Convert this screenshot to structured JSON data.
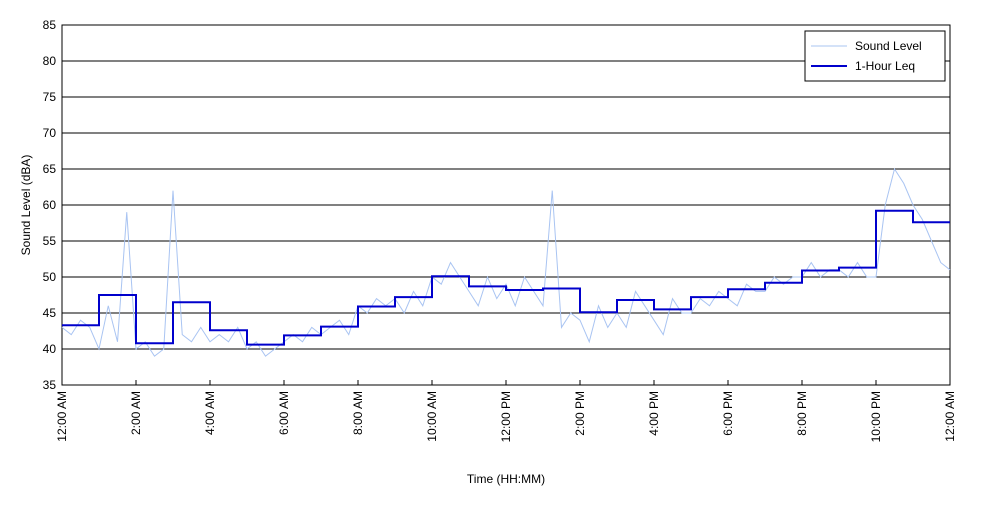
{
  "chart_data": {
    "type": "line",
    "xlabel": "Time (HH:MM)",
    "ylabel": "Sound Level (dBA)",
    "xlim": [
      0,
      24
    ],
    "ylim": [
      35,
      85
    ],
    "xticks": [
      {
        "value": 0,
        "label": "12:00 AM"
      },
      {
        "value": 2,
        "label": "2:00 AM"
      },
      {
        "value": 4,
        "label": "4:00 AM"
      },
      {
        "value": 6,
        "label": "6:00 AM"
      },
      {
        "value": 8,
        "label": "8:00 AM"
      },
      {
        "value": 10,
        "label": "10:00 AM"
      },
      {
        "value": 12,
        "label": "12:00 PM"
      },
      {
        "value": 14,
        "label": "2:00 PM"
      },
      {
        "value": 16,
        "label": "4:00 PM"
      },
      {
        "value": 18,
        "label": "6:00 PM"
      },
      {
        "value": 20,
        "label": "8:00 PM"
      },
      {
        "value": 22,
        "label": "10:00 PM"
      },
      {
        "value": 24,
        "label": "12:00 AM"
      }
    ],
    "yticks": [
      35,
      40,
      45,
      50,
      55,
      60,
      65,
      70,
      75,
      80,
      85
    ],
    "grid": true,
    "legend": "upper right",
    "series": [
      {
        "name": "Sound Level",
        "color": "#a9c4f2",
        "step": false,
        "x": [
          0,
          0.25,
          0.5,
          0.75,
          1,
          1.25,
          1.5,
          1.75,
          2,
          2.25,
          2.5,
          2.75,
          3,
          3.25,
          3.5,
          3.75,
          4,
          4.25,
          4.5,
          4.75,
          5,
          5.25,
          5.5,
          5.75,
          6,
          6.25,
          6.5,
          6.75,
          7,
          7.25,
          7.5,
          7.75,
          8,
          8.25,
          8.5,
          8.75,
          9,
          9.25,
          9.5,
          9.75,
          10,
          10.25,
          10.5,
          10.75,
          11,
          11.25,
          11.5,
          11.75,
          12,
          12.25,
          12.5,
          12.75,
          13,
          13.25,
          13.5,
          13.75,
          14,
          14.25,
          14.5,
          14.75,
          15,
          15.25,
          15.5,
          15.75,
          16,
          16.25,
          16.5,
          16.75,
          17,
          17.25,
          17.5,
          17.75,
          18,
          18.25,
          18.5,
          18.75,
          19,
          19.25,
          19.5,
          19.75,
          20,
          20.25,
          20.5,
          20.75,
          21,
          21.25,
          21.5,
          21.75,
          22,
          22.25,
          22.5,
          22.75,
          23,
          23.25,
          23.5,
          23.75,
          24
        ],
        "values": [
          43,
          42,
          44,
          43,
          40,
          46,
          41,
          59,
          40,
          41,
          39,
          40,
          62,
          42,
          41,
          43,
          41,
          42,
          41,
          43,
          40,
          41,
          39,
          40,
          41,
          42,
          41,
          43,
          42,
          43,
          44,
          42,
          46,
          45,
          47,
          46,
          47,
          45,
          48,
          46,
          50,
          49,
          52,
          50,
          48,
          46,
          50,
          47,
          49,
          46,
          50,
          48,
          46,
          62,
          43,
          45,
          44,
          41,
          46,
          43,
          45,
          43,
          48,
          46,
          44,
          42,
          47,
          45,
          45,
          47,
          46,
          48,
          47,
          46,
          49,
          48,
          48,
          50,
          49,
          50,
          50,
          52,
          50,
          51,
          51,
          50,
          52,
          50,
          50,
          60,
          65,
          63,
          60,
          58,
          55,
          52,
          51
        ]
      },
      {
        "name": "1-Hour Leq",
        "color": "#0000cc",
        "step": true,
        "x": [
          0,
          1,
          2,
          3,
          4,
          5,
          6,
          7,
          8,
          9,
          10,
          11,
          12,
          13,
          14,
          15,
          16,
          17,
          18,
          19,
          20,
          21,
          22,
          23
        ],
        "values": [
          43.3,
          47.5,
          40.8,
          46.5,
          42.6,
          40.6,
          41.9,
          43.1,
          45.9,
          47.2,
          50.1,
          48.7,
          48.2,
          48.4,
          45.1,
          46.8,
          45.5,
          47.2,
          48.3,
          49.2,
          50.9,
          51.3,
          59.2,
          57.6
        ]
      }
    ]
  }
}
